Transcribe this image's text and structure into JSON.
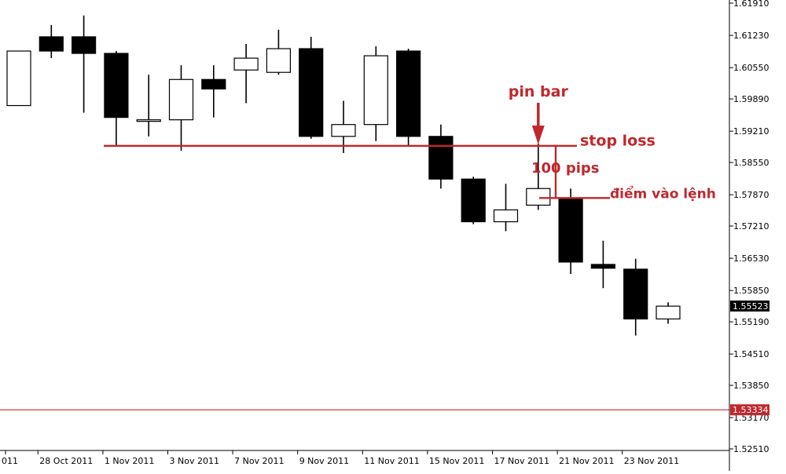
{
  "chart_data": {
    "type": "candlestick",
    "ylim": [
      1.5251,
      1.6191
    ],
    "y_ticks": [
      "1.61910",
      "1.61230",
      "1.60550",
      "1.59890",
      "1.59210",
      "1.58550",
      "1.57870",
      "1.57210",
      "1.56530",
      "1.55850",
      "1.55190",
      "1.54510",
      "1.53850",
      "1.53170",
      "1.52510"
    ],
    "x_tick_labels": [
      {
        "label": "011",
        "index": 0
      },
      {
        "label": "28 Oct 2011",
        "index": 1
      },
      {
        "label": "1 Nov 2011",
        "index": 3
      },
      {
        "label": "3 Nov 2011",
        "index": 5
      },
      {
        "label": "7 Nov 2011",
        "index": 7
      },
      {
        "label": "9 Nov 2011",
        "index": 9
      },
      {
        "label": "11 Nov 2011",
        "index": 11
      },
      {
        "label": "15 Nov 2011",
        "index": 13
      },
      {
        "label": "17 Nov 2011",
        "index": 15
      },
      {
        "label": "21 Nov 2011",
        "index": 17
      },
      {
        "label": "23 Nov 2011",
        "index": 19
      }
    ],
    "candles": [
      {
        "o": 1.5975,
        "h": 1.609,
        "l": 1.5975,
        "c": 1.609
      },
      {
        "o": 1.612,
        "h": 1.6145,
        "l": 1.6075,
        "c": 1.609
      },
      {
        "o": 1.612,
        "h": 1.6165,
        "l": 1.596,
        "c": 1.6085
      },
      {
        "o": 1.6085,
        "h": 1.609,
        "l": 1.589,
        "c": 1.595
      },
      {
        "o": 1.5945,
        "h": 1.604,
        "l": 1.591,
        "c": 1.5945
      },
      {
        "o": 1.5945,
        "h": 1.606,
        "l": 1.588,
        "c": 1.603
      },
      {
        "o": 1.603,
        "h": 1.606,
        "l": 1.595,
        "c": 1.601
      },
      {
        "o": 1.605,
        "h": 1.6105,
        "l": 1.598,
        "c": 1.6075
      },
      {
        "o": 1.6045,
        "h": 1.6135,
        "l": 1.604,
        "c": 1.6095
      },
      {
        "o": 1.6095,
        "h": 1.612,
        "l": 1.5905,
        "c": 1.591
      },
      {
        "o": 1.591,
        "h": 1.5985,
        "l": 1.5875,
        "c": 1.5935
      },
      {
        "o": 1.5935,
        "h": 1.61,
        "l": 1.59,
        "c": 1.608
      },
      {
        "o": 1.609,
        "h": 1.6095,
        "l": 1.589,
        "c": 1.591
      },
      {
        "o": 1.591,
        "h": 1.5935,
        "l": 1.58,
        "c": 1.582
      },
      {
        "o": 1.582,
        "h": 1.5825,
        "l": 1.5725,
        "c": 1.573
      },
      {
        "o": 1.573,
        "h": 1.581,
        "l": 1.571,
        "c": 1.5755
      },
      {
        "o": 1.5765,
        "h": 1.5895,
        "l": 1.5755,
        "c": 1.58
      },
      {
        "o": 1.578,
        "h": 1.58,
        "l": 1.562,
        "c": 1.5645
      },
      {
        "o": 1.564,
        "h": 1.569,
        "l": 1.559,
        "c": 1.5632
      },
      {
        "o": 1.563,
        "h": 1.5652,
        "l": 1.549,
        "c": 1.5525
      },
      {
        "o": 1.5525,
        "h": 1.556,
        "l": 1.5515,
        "c": 1.5552
      }
    ],
    "current_price_label": "1.55523",
    "current_price": 1.55523,
    "horizontal_line_label": "1.53334",
    "horizontal_line_value": 1.53334,
    "annotations": {
      "pin_bar": "pin bar",
      "stop_loss": "stop loss",
      "pips": "100 pips",
      "entry": "điểm vào lệnh",
      "stop_loss_value": 1.589,
      "entry_value": 1.578,
      "color": "#c0282d"
    },
    "colors": {
      "bear": "#000000",
      "bull": "#ffffff",
      "outline": "#000000",
      "annotation": "#c0282d",
      "price_bg": "#000000",
      "line_bg": "#c0282d"
    }
  }
}
